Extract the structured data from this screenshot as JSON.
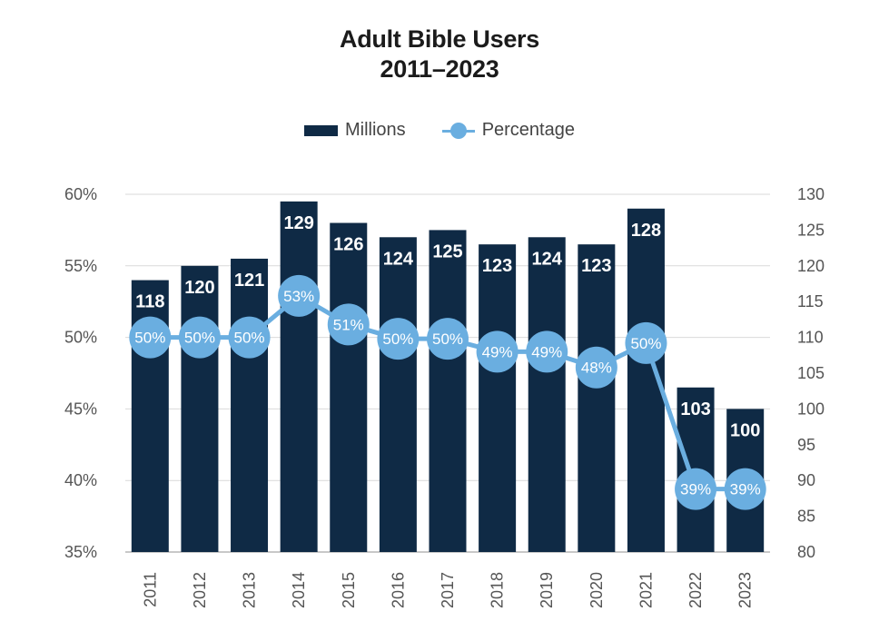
{
  "chart_data": {
    "type": "bar",
    "title": "Adult Bible Users",
    "subtitle": "2011–2023",
    "categories": [
      "2011",
      "2012",
      "2013",
      "2014",
      "2015",
      "2016",
      "2017",
      "2018",
      "2019",
      "2020",
      "2021",
      "2022",
      "2023"
    ],
    "series": [
      {
        "name": "Millions",
        "type": "bar",
        "axis": "right",
        "color": "#0f2a45",
        "values": [
          118,
          120,
          121,
          129,
          126,
          124,
          125,
          123,
          124,
          123,
          128,
          103,
          100
        ]
      },
      {
        "name": "Percentage",
        "type": "line",
        "axis": "left",
        "color": "#6aaee0",
        "values": [
          50,
          50,
          50,
          53,
          51,
          50,
          50,
          49,
          49,
          48,
          50,
          39,
          39
        ],
        "plotted_values": [
          50.0,
          50.0,
          50.0,
          52.9,
          50.9,
          49.9,
          49.9,
          49.0,
          49.0,
          47.9,
          49.6,
          39.4,
          39.4
        ],
        "labels": [
          "50%",
          "50%",
          "50%",
          "53%",
          "51%",
          "50%",
          "50%",
          "49%",
          "49%",
          "48%",
          "50%",
          "39%",
          "39%"
        ]
      }
    ],
    "left_axis": {
      "ylim": [
        35,
        60
      ],
      "ticks": [
        35,
        40,
        45,
        50,
        55,
        60
      ],
      "tick_labels": [
        "35%",
        "40%",
        "45%",
        "50%",
        "55%",
        "60%"
      ]
    },
    "right_axis": {
      "ylim": [
        80,
        130
      ],
      "ticks": [
        80,
        85,
        90,
        95,
        100,
        105,
        110,
        115,
        120,
        125,
        130
      ],
      "tick_labels": [
        "80",
        "85",
        "90",
        "95",
        "100",
        "105",
        "110",
        "115",
        "120",
        "125",
        "130"
      ]
    },
    "xlabel": "",
    "ylabel": "",
    "grid": true,
    "legend": {
      "placement": "top-center",
      "entries": [
        "Millions",
        "Percentage"
      ]
    }
  }
}
